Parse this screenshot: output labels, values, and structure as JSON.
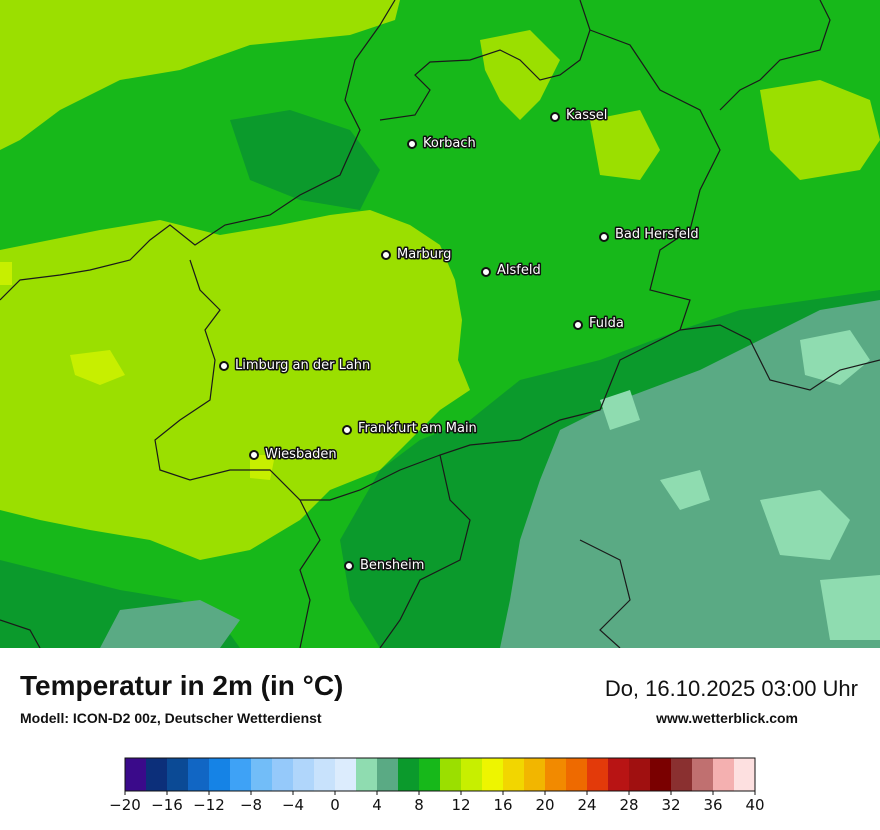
{
  "map": {
    "colors": {
      "base_green": "#17b81a",
      "light_green": "#9bdf00",
      "yellow_green": "#c7ef00",
      "dark_green": "#0b9a2c",
      "teal": "#5aaa84",
      "mint": "#8fdcb0",
      "border": "#1a1a1a"
    },
    "cities": [
      {
        "name": "Kassel"
      },
      {
        "name": "Korbach"
      },
      {
        "name": "Bad Hersfeld"
      },
      {
        "name": "Marburg"
      },
      {
        "name": "Alsfeld"
      },
      {
        "name": "Fulda"
      },
      {
        "name": "Limburg an der Lahn"
      },
      {
        "name": "Frankfurt am Main"
      },
      {
        "name": "Wiesbaden"
      },
      {
        "name": "Bensheim"
      }
    ]
  },
  "footer": {
    "title": "Temperatur in 2m (in °C)",
    "model": "Modell: ICON-D2 00z, Deutscher Wetterdienst",
    "datetime": "Do, 16.10.2025 03:00 Uhr",
    "website": "www.wetterblick.com"
  },
  "colorbar": {
    "ticks": [
      "−20",
      "−16",
      "−12",
      "−8",
      "−4",
      "0",
      "4",
      "8",
      "12",
      "16",
      "20",
      "24",
      "28",
      "32",
      "36",
      "40"
    ],
    "colors": [
      "#3a0a8a",
      "#0c2f7a",
      "#0b4a95",
      "#1166c4",
      "#1583e6",
      "#3ea2f6",
      "#72bdf8",
      "#95c9fa",
      "#b0d6fb",
      "#c8e2fc",
      "#dcecfd",
      "#8fdcb0",
      "#5aaa84",
      "#0b9a2c",
      "#17b81a",
      "#9bdf00",
      "#c7ef00",
      "#eef500",
      "#f2d600",
      "#f2b600",
      "#f28a00",
      "#ee6a00",
      "#e33a0a",
      "#b81414",
      "#a01010",
      "#7a0000",
      "#8a3030",
      "#c07070",
      "#f4b0b0",
      "#fde0e0"
    ]
  }
}
